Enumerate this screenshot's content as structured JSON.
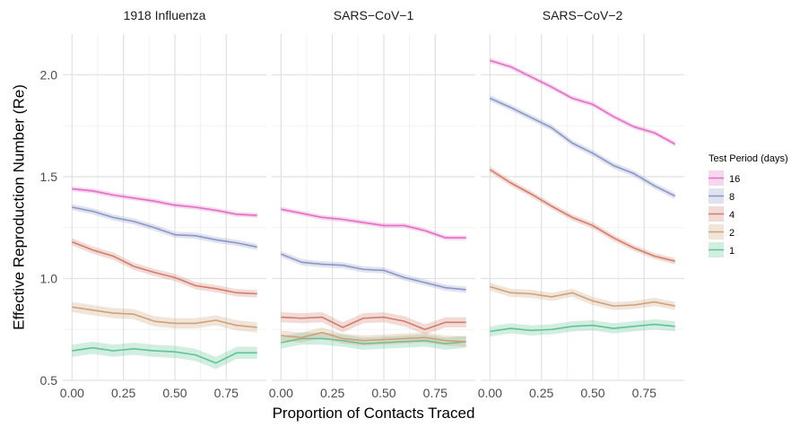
{
  "chart_data": {
    "type": "line",
    "xlabel": "Proportion of Contacts Traced",
    "ylabel": "Effective Reproduction Number (Re)",
    "xlim": [
      -0.045,
      0.945
    ],
    "ylim": [
      0.5,
      2.2
    ],
    "x_ticks": [
      0,
      0.25,
      0.5,
      0.75
    ],
    "x_tick_labels": [
      "0.00",
      "0.25",
      "0.50",
      "0.75"
    ],
    "y_ticks": [
      0.5,
      1.0,
      1.5,
      2.0
    ],
    "y_tick_labels": [
      "0.5",
      "1.0",
      "1.5",
      "2.0"
    ],
    "x": [
      0,
      0.1,
      0.2,
      0.3,
      0.4,
      0.5,
      0.6,
      0.7,
      0.8,
      0.9
    ],
    "grid": true,
    "legend": {
      "title": "Test Period (days)",
      "placement": "right",
      "entries": [
        {
          "label": "16",
          "color": "#E16FC3"
        },
        {
          "label": "8",
          "color": "#8C96C6"
        },
        {
          "label": "4",
          "color": "#D27C6A"
        },
        {
          "label": "2",
          "color": "#CDA27A"
        },
        {
          "label": "1",
          "color": "#5EC395"
        }
      ]
    },
    "panels": [
      {
        "title": "1918 Influenza",
        "series": [
          {
            "name": "16",
            "values": [
              1.44,
              1.43,
              1.41,
              1.395,
              1.38,
              1.36,
              1.35,
              1.335,
              1.315,
              1.31
            ],
            "band": 0.012
          },
          {
            "name": "8",
            "values": [
              1.35,
              1.33,
              1.3,
              1.28,
              1.25,
              1.215,
              1.21,
              1.19,
              1.175,
              1.155
            ],
            "band": 0.015
          },
          {
            "name": "4",
            "values": [
              1.18,
              1.14,
              1.11,
              1.06,
              1.03,
              1.005,
              0.965,
              0.95,
              0.93,
              0.925
            ],
            "band": 0.018
          },
          {
            "name": "2",
            "values": [
              0.86,
              0.845,
              0.83,
              0.825,
              0.79,
              0.78,
              0.78,
              0.795,
              0.77,
              0.76
            ],
            "band": 0.025
          },
          {
            "name": "1",
            "values": [
              0.645,
              0.66,
              0.645,
              0.655,
              0.645,
              0.64,
              0.625,
              0.585,
              0.635,
              0.635
            ],
            "band": 0.03
          }
        ]
      },
      {
        "title": "SARS−CoV−1",
        "series": [
          {
            "name": "16",
            "values": [
              1.34,
              1.32,
              1.3,
              1.29,
              1.275,
              1.26,
              1.26,
              1.235,
              1.2,
              1.2
            ],
            "band": 0.012
          },
          {
            "name": "8",
            "values": [
              1.12,
              1.08,
              1.07,
              1.065,
              1.045,
              1.04,
              1.005,
              0.98,
              0.955,
              0.945
            ],
            "band": 0.015
          },
          {
            "name": "4",
            "values": [
              0.81,
              0.805,
              0.81,
              0.76,
              0.805,
              0.81,
              0.79,
              0.75,
              0.785,
              0.785
            ],
            "band": 0.025
          },
          {
            "name": "2",
            "values": [
              0.72,
              0.71,
              0.735,
              0.705,
              0.695,
              0.7,
              0.705,
              0.71,
              0.695,
              0.69
            ],
            "band": 0.025
          },
          {
            "name": "1",
            "values": [
              0.685,
              0.705,
              0.705,
              0.695,
              0.68,
              0.685,
              0.69,
              0.695,
              0.68,
              0.69
            ],
            "band": 0.03
          }
        ]
      },
      {
        "title": "SARS−CoV−2",
        "series": [
          {
            "name": "16",
            "values": [
              2.07,
              2.04,
              1.99,
              1.94,
              1.885,
              1.855,
              1.795,
              1.745,
              1.715,
              1.66
            ],
            "band": 0.012
          },
          {
            "name": "8",
            "values": [
              1.885,
              1.84,
              1.79,
              1.74,
              1.665,
              1.615,
              1.555,
              1.515,
              1.455,
              1.405
            ],
            "band": 0.015
          },
          {
            "name": "4",
            "values": [
              1.535,
              1.47,
              1.415,
              1.355,
              1.3,
              1.26,
              1.2,
              1.15,
              1.11,
              1.085
            ],
            "band": 0.015
          },
          {
            "name": "2",
            "values": [
              0.96,
              0.93,
              0.925,
              0.91,
              0.93,
              0.89,
              0.865,
              0.87,
              0.885,
              0.865
            ],
            "band": 0.02
          },
          {
            "name": "1",
            "values": [
              0.74,
              0.755,
              0.745,
              0.75,
              0.765,
              0.77,
              0.755,
              0.765,
              0.775,
              0.765
            ],
            "band": 0.025
          }
        ]
      }
    ]
  }
}
